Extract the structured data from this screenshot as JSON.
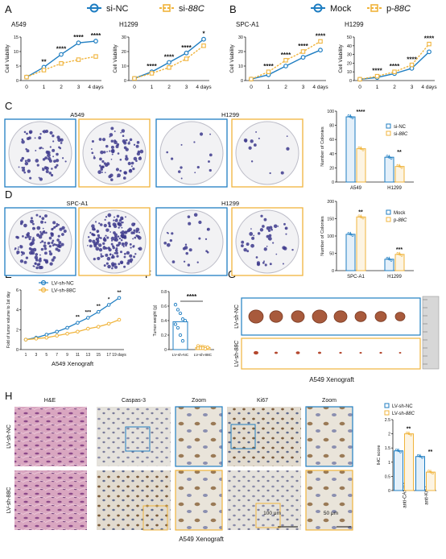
{
  "colors": {
    "blue": "#1f7ec2",
    "orange": "#f0b43c",
    "dark": "#111111",
    "grid": "#222222"
  },
  "panel_letters": [
    "A",
    "B",
    "C",
    "D",
    "E",
    "F",
    "G",
    "H"
  ],
  "legend_top": {
    "nc": "si-NC",
    "si88": "si-",
    "si88_it": "88C",
    "mock": "Mock",
    "p88": "p-",
    "p88_it": "88C"
  },
  "xticks_days": [
    "0",
    "1",
    "2",
    "3",
    "4 days"
  ],
  "cell_viability_label": "Cell Viability",
  "colonies_label": "Number of Colonies",
  "chart_data": [
    {
      "type": "line",
      "title": "A549",
      "ylabel": "Cell Viability",
      "x": [
        0,
        1,
        2,
        3,
        4
      ],
      "ylim": [
        0,
        15
      ],
      "yticks": [
        0,
        5,
        10,
        15
      ],
      "series": [
        {
          "name": "si-NC",
          "values": [
            1.2,
            4.6,
            9.0,
            13.0,
            13.6
          ]
        },
        {
          "name": "si-88C",
          "values": [
            1.2,
            3.6,
            5.9,
            7.2,
            8.3
          ]
        }
      ],
      "stars": [
        "",
        "**",
        "****",
        "****",
        "****"
      ]
    },
    {
      "type": "line",
      "title": "H1299",
      "ylabel": "Cell Viability",
      "x": [
        0,
        1,
        2,
        3,
        4
      ],
      "ylim": [
        0,
        30
      ],
      "yticks": [
        0,
        10,
        20,
        30
      ],
      "series": [
        {
          "name": "si-NC",
          "values": [
            1.5,
            6.0,
            12.5,
            19.0,
            28.5
          ]
        },
        {
          "name": "si-88C",
          "values": [
            1.5,
            5.0,
            9.0,
            15.0,
            24.0
          ]
        }
      ],
      "stars": [
        "",
        "****",
        "****",
        "****",
        "*"
      ]
    },
    {
      "type": "line",
      "title": "SPC-A1",
      "ylabel": "Cell Viability",
      "x": [
        0,
        1,
        2,
        3,
        4
      ],
      "ylim": [
        0,
        30
      ],
      "yticks": [
        0,
        10,
        20,
        30
      ],
      "series": [
        {
          "name": "Mock",
          "values": [
            1.0,
            4.0,
            10.0,
            16.0,
            21.0
          ]
        },
        {
          "name": "p-88C",
          "values": [
            1.0,
            6.0,
            14.0,
            20.0,
            27.0
          ]
        }
      ],
      "stars": [
        "",
        "****",
        "****",
        "****",
        "****"
      ]
    },
    {
      "type": "line",
      "title": "H1299",
      "ylabel": "Cell Viability",
      "x": [
        0,
        1,
        2,
        3,
        4
      ],
      "ylim": [
        0,
        50
      ],
      "yticks": [
        0,
        10,
        20,
        30,
        40,
        50
      ],
      "series": [
        {
          "name": "Mock",
          "values": [
            1.5,
            3.5,
            8.0,
            14.0,
            33.0
          ]
        },
        {
          "name": "p-88C",
          "values": [
            1.5,
            5.0,
            10.0,
            18.0,
            42.0
          ]
        }
      ],
      "stars": [
        "",
        "****",
        "****",
        "****",
        "****"
      ]
    },
    {
      "type": "bar",
      "ylabel": "Number of Colonies",
      "categories": [
        "A549",
        "H1299"
      ],
      "ylim": [
        0,
        100
      ],
      "yticks": [
        0,
        20,
        40,
        60,
        80,
        100
      ],
      "series": [
        {
          "name": "si-NC",
          "values": [
            92,
            35
          ]
        },
        {
          "name": "si-88C",
          "values": [
            47,
            22
          ]
        }
      ],
      "stars": [
        "****",
        "**"
      ],
      "legend": [
        "si-NC",
        "si-88C"
      ]
    },
    {
      "type": "bar",
      "ylabel": "Number of Colonies",
      "categories": [
        "SPC-A1",
        "H1299"
      ],
      "ylim": [
        0,
        200
      ],
      "yticks": [
        0,
        50,
        100,
        150,
        200
      ],
      "series": [
        {
          "name": "Mock",
          "values": [
            105,
            33
          ]
        },
        {
          "name": "p-88C",
          "values": [
            155,
            47
          ]
        }
      ],
      "stars": [
        "**",
        "***"
      ],
      "legend": [
        "Mock",
        "p-88C"
      ]
    },
    {
      "type": "line",
      "ylabel": "Fold of tumor volume to 1st day",
      "xlabel": "A549  Xenograft",
      "x": [
        1,
        3,
        5,
        7,
        9,
        11,
        13,
        15,
        17,
        19
      ],
      "xtick_labels": [
        "1",
        "3",
        "5",
        "7",
        "9",
        "11",
        "13",
        "15",
        "17",
        "19 days"
      ],
      "ylim": [
        0,
        6
      ],
      "yticks": [
        0,
        2,
        4,
        6
      ],
      "series": [
        {
          "name": "LV-sh-NC",
          "values": [
            1.0,
            1.2,
            1.5,
            1.8,
            2.2,
            2.7,
            3.2,
            3.8,
            4.5,
            5.2
          ]
        },
        {
          "name": "LV-sh-88C",
          "values": [
            1.0,
            1.1,
            1.2,
            1.4,
            1.6,
            1.8,
            2.1,
            2.3,
            2.6,
            3.0
          ]
        }
      ],
      "stars": [
        "",
        "",
        "",
        "",
        "",
        "**",
        "***",
        "**",
        "*",
        "**"
      ]
    },
    {
      "type": "scatter",
      "ylabel": "Tumor weight (g)",
      "categories": [
        "LV-sh-NC",
        "LV-sh-88C"
      ],
      "ylim": [
        0,
        0.8
      ],
      "yticks": [
        0.0,
        0.2,
        0.4,
        0.6,
        0.8
      ],
      "series": [
        {
          "name": "LV-sh-NC",
          "values": [
            0.62,
            0.55,
            0.5,
            0.42,
            0.4,
            0.35,
            0.3,
            0.2,
            0.12
          ]
        },
        {
          "name": "LV-sh-88C",
          "values": [
            0.05,
            0.04,
            0.04,
            0.03,
            0.03,
            0.02,
            0.02,
            0.02,
            0.01
          ]
        }
      ],
      "stars": [
        "****"
      ]
    },
    {
      "type": "bar",
      "ylabel": "IHC score",
      "categories": [
        "anti-CASP3",
        "anti-Ki67"
      ],
      "ylim": [
        0,
        2.5
      ],
      "yticks": [
        0.0,
        0.5,
        1.0,
        1.5,
        2.0,
        2.5
      ],
      "series": [
        {
          "name": "LV-sh-NC",
          "values": [
            1.4,
            1.2
          ]
        },
        {
          "name": "LV-sh-88C",
          "values": [
            2.0,
            0.65
          ]
        }
      ],
      "stars": [
        "**",
        "**"
      ],
      "legend": [
        "LV-sh-NC",
        "LV-sh-88C"
      ]
    }
  ],
  "panel_c": {
    "labels": [
      "A549",
      "H1299"
    ]
  },
  "panel_d": {
    "labels": [
      "SPC-A1",
      "H1299"
    ]
  },
  "panel_g": {
    "row1": "LV-sh-NC",
    "row2": "LV-sh-",
    "row2_it": "88C",
    "caption": "A549  Xenograft"
  },
  "panel_h": {
    "headers": [
      "H&E",
      "Caspas-3",
      "Zoom",
      "Ki67",
      "Zoom"
    ],
    "row1": "LV-sh-NC",
    "row2": "LV-sh-88C",
    "scale1": "100 μm",
    "scale2": "50 μm",
    "caption": "A549  Xenograft"
  },
  "panel_f_cats": [
    "LV-sh-NC",
    "LV-sh-88C"
  ]
}
